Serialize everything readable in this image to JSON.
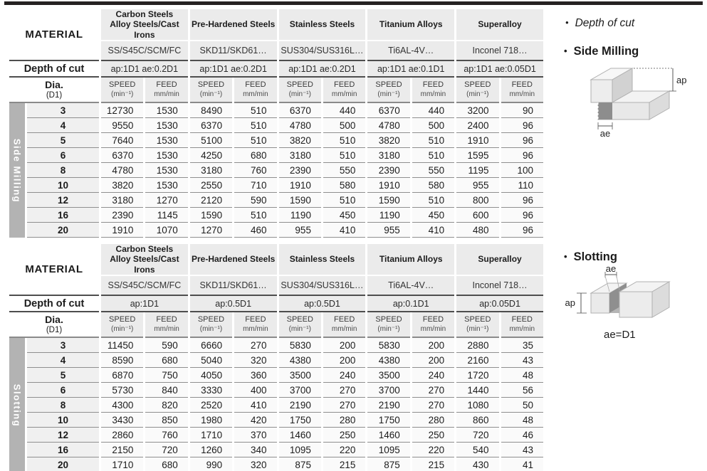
{
  "side_panel": {
    "bullet": "•",
    "depth_of_cut_label": "Depth of cut",
    "side_milling_label": "Side Milling",
    "slotting_label": "Slotting",
    "ap_label": "ap",
    "ae_label": "ae",
    "ae_equals_label": "ae=D1"
  },
  "tables": [
    {
      "section_label": "Side Milling",
      "material_label": "MATERIAL",
      "depth_label": "Depth of cut",
      "dia_label": "Dia.",
      "dia_sub": "(D1)",
      "speed_label": "SPEED",
      "speed_unit": "(min⁻¹)",
      "feed_label": "FEED",
      "feed_unit": "mm/min",
      "materials": [
        {
          "name": "Carbon Steels\nAlloy Steels/Cast Irons",
          "grade": "SS/S45C/SCM/FC",
          "depth": "ap:1D1 ae:0.2D1"
        },
        {
          "name": "Pre-Hardened Steels",
          "grade": "SKD11/SKD61…",
          "depth": "ap:1D1 ae:0.2D1"
        },
        {
          "name": "Stainless Steels",
          "grade": "SUS304/SUS316L…",
          "depth": "ap:1D1 ae:0.2D1"
        },
        {
          "name": "Titanium Alloys",
          "grade": "Ti6AL-4V…",
          "depth": "ap:1D1 ae:0.1D1"
        },
        {
          "name": "Superalloy",
          "grade": "Inconel 718…",
          "depth": "ap:1D1 ae:0.05D1"
        }
      ],
      "rows": [
        {
          "dia": "3",
          "values": [
            12730,
            1530,
            8490,
            510,
            6370,
            440,
            6370,
            440,
            3200,
            90
          ]
        },
        {
          "dia": "4",
          "values": [
            9550,
            1530,
            6370,
            510,
            4780,
            500,
            4780,
            500,
            2400,
            96
          ]
        },
        {
          "dia": "5",
          "values": [
            7640,
            1530,
            5100,
            510,
            3820,
            510,
            3820,
            510,
            1910,
            96
          ]
        },
        {
          "dia": "6",
          "values": [
            6370,
            1530,
            4250,
            680,
            3180,
            510,
            3180,
            510,
            1595,
            96
          ]
        },
        {
          "dia": "8",
          "values": [
            4780,
            1530,
            3180,
            760,
            2390,
            550,
            2390,
            550,
            1195,
            100
          ]
        },
        {
          "dia": "10",
          "values": [
            3820,
            1530,
            2550,
            710,
            1910,
            580,
            1910,
            580,
            955,
            110
          ]
        },
        {
          "dia": "12",
          "values": [
            3180,
            1270,
            2120,
            590,
            1590,
            510,
            1590,
            510,
            800,
            96
          ]
        },
        {
          "dia": "16",
          "values": [
            2390,
            1145,
            1590,
            510,
            1190,
            450,
            1190,
            450,
            600,
            96
          ]
        },
        {
          "dia": "20",
          "values": [
            1910,
            1070,
            1270,
            460,
            955,
            410,
            955,
            410,
            480,
            96
          ]
        }
      ]
    },
    {
      "section_label": "Slotting",
      "material_label": "MATERIAL",
      "depth_label": "Depth of cut",
      "dia_label": "Dia.",
      "dia_sub": "(D1)",
      "speed_label": "SPEED",
      "speed_unit": "(min⁻¹)",
      "feed_label": "FEED",
      "feed_unit": "mm/min",
      "materials": [
        {
          "name": "Carbon Steels\nAlloy Steels/Cast Irons",
          "grade": "SS/S45C/SCM/FC",
          "depth": "ap:1D1"
        },
        {
          "name": "Pre-Hardened Steels",
          "grade": "SKD11/SKD61…",
          "depth": "ap:0.5D1"
        },
        {
          "name": "Stainless Steels",
          "grade": "SUS304/SUS316L…",
          "depth": "ap:0.5D1"
        },
        {
          "name": "Titanium Alloys",
          "grade": "Ti6AL-4V…",
          "depth": "ap:0.1D1"
        },
        {
          "name": "Superalloy",
          "grade": "Inconel 718…",
          "depth": "ap:0.05D1"
        }
      ],
      "rows": [
        {
          "dia": "3",
          "values": [
            11450,
            590,
            6660,
            270,
            5830,
            200,
            5830,
            200,
            2880,
            35
          ]
        },
        {
          "dia": "4",
          "values": [
            8590,
            680,
            5040,
            320,
            4380,
            200,
            4380,
            200,
            2160,
            43
          ]
        },
        {
          "dia": "5",
          "values": [
            6870,
            750,
            4050,
            360,
            3500,
            240,
            3500,
            240,
            1720,
            48
          ]
        },
        {
          "dia": "6",
          "values": [
            5730,
            840,
            3330,
            400,
            3700,
            270,
            3700,
            270,
            1440,
            56
          ]
        },
        {
          "dia": "8",
          "values": [
            4300,
            820,
            2520,
            410,
            2190,
            270,
            2190,
            270,
            1080,
            50
          ]
        },
        {
          "dia": "10",
          "values": [
            3430,
            850,
            1980,
            420,
            1750,
            280,
            1750,
            280,
            860,
            48
          ]
        },
        {
          "dia": "12",
          "values": [
            2860,
            760,
            1710,
            370,
            1460,
            250,
            1460,
            250,
            720,
            46
          ]
        },
        {
          "dia": "16",
          "values": [
            2150,
            720,
            1260,
            340,
            1095,
            220,
            1095,
            220,
            540,
            43
          ]
        },
        {
          "dia": "20",
          "values": [
            1710,
            680,
            990,
            320,
            875,
            215,
            875,
            215,
            430,
            41
          ]
        }
      ]
    }
  ]
}
